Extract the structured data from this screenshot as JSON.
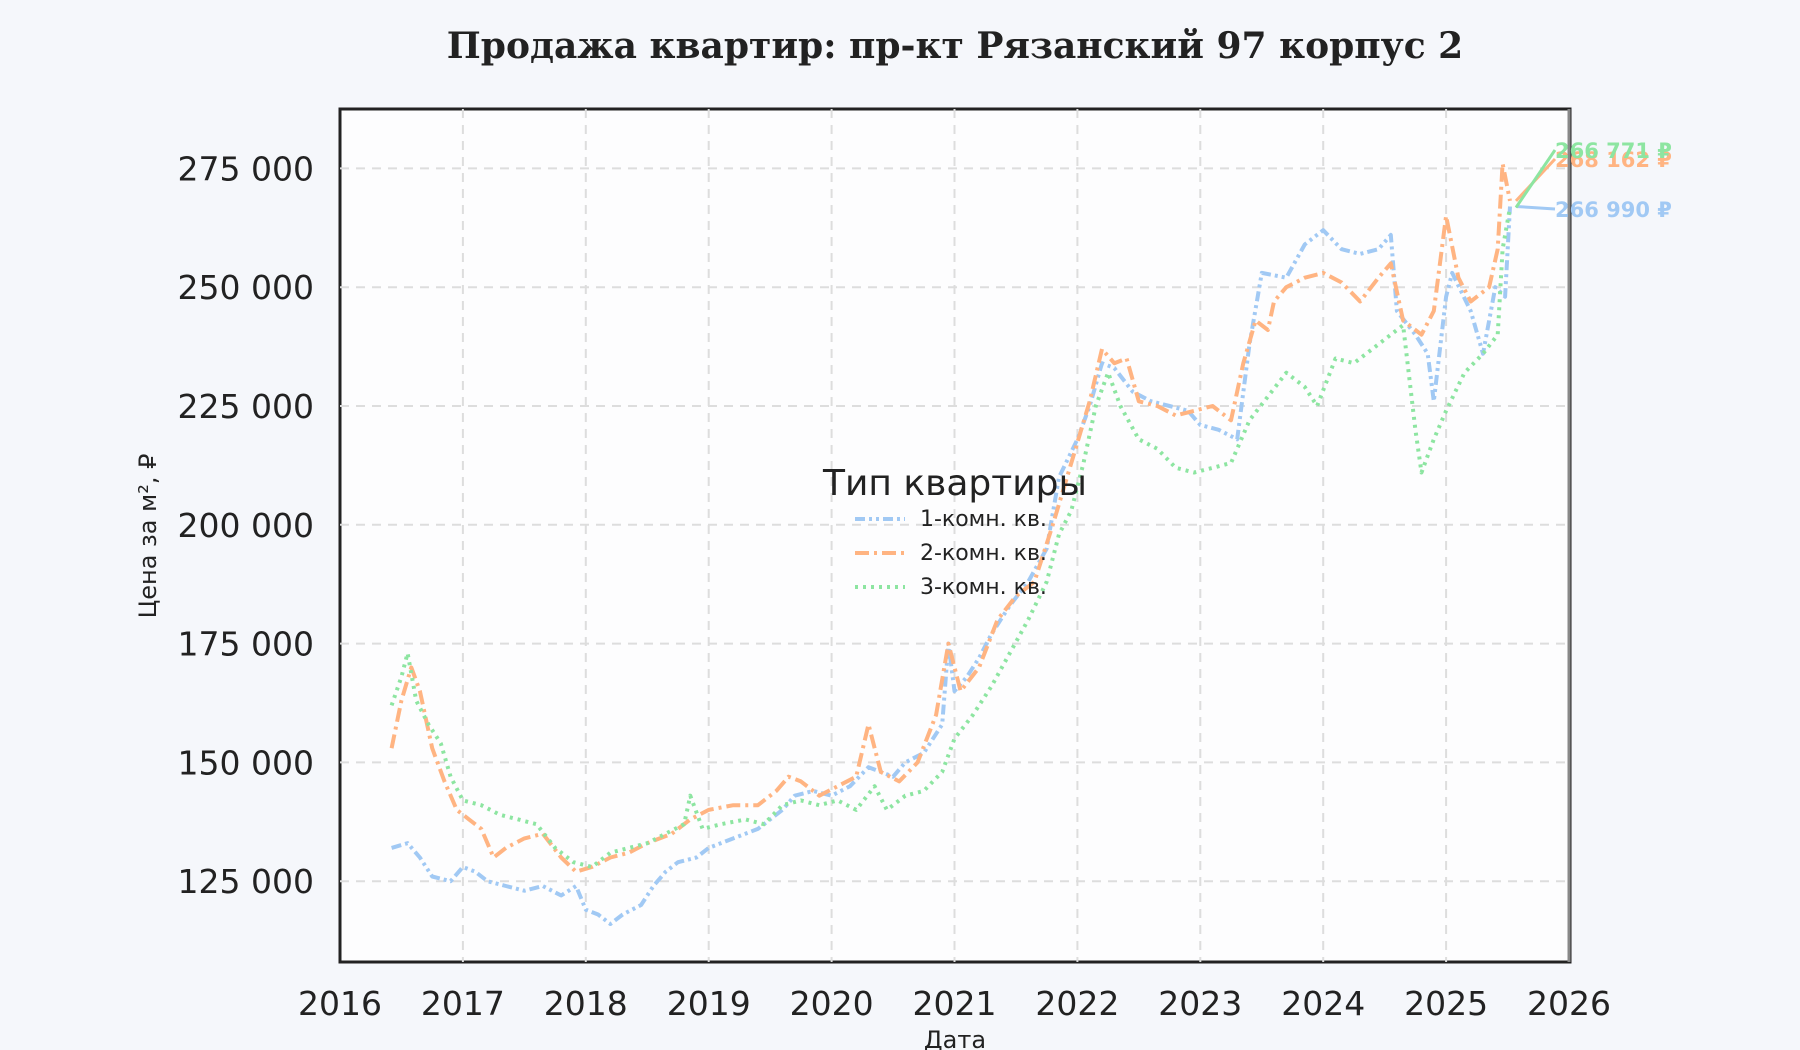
{
  "chart_data": {
    "type": "line",
    "title": "Продажа квартир: пр-кт Рязанский 97 корпус 2",
    "xlabel": "Дата",
    "ylabel": "Цена за м², ₽",
    "xlim": [
      2016,
      2026
    ],
    "ylim": [
      108000,
      287500
    ],
    "x_ticks": [
      "2016",
      "2017",
      "2018",
      "2019",
      "2020",
      "2021",
      "2022",
      "2023",
      "2024",
      "2025",
      "2026"
    ],
    "y_ticks": [
      {
        "value": 125000,
        "label": "125 000"
      },
      {
        "value": 150000,
        "label": "150 000"
      },
      {
        "value": 175000,
        "label": "175 000"
      },
      {
        "value": 200000,
        "label": "200 000"
      },
      {
        "value": 225000,
        "label": "225 000"
      },
      {
        "value": 250000,
        "label": "250 000"
      },
      {
        "value": 275000,
        "label": "275 000"
      }
    ],
    "grid": true,
    "legend": {
      "title": "Тип квартиры",
      "position": "center"
    },
    "series": [
      {
        "name": "1-комн. кв.",
        "color": "#a1c9f4",
        "dash": "dashdotdot",
        "end_label": "266 990 ₽",
        "points": [
          [
            2016.42,
            132000
          ],
          [
            2016.55,
            133000
          ],
          [
            2016.65,
            130000
          ],
          [
            2016.75,
            126000
          ],
          [
            2016.9,
            125000
          ],
          [
            2017.0,
            128000
          ],
          [
            2017.1,
            127000
          ],
          [
            2017.2,
            125000
          ],
          [
            2017.35,
            124000
          ],
          [
            2017.5,
            123000
          ],
          [
            2017.65,
            124000
          ],
          [
            2017.8,
            122000
          ],
          [
            2017.92,
            124000
          ],
          [
            2018.0,
            119000
          ],
          [
            2018.1,
            118000
          ],
          [
            2018.2,
            116000
          ],
          [
            2018.3,
            118000
          ],
          [
            2018.45,
            120000
          ],
          [
            2018.55,
            124000
          ],
          [
            2018.65,
            127000
          ],
          [
            2018.75,
            129000
          ],
          [
            2018.9,
            130000
          ],
          [
            2019.0,
            132000
          ],
          [
            2019.2,
            134000
          ],
          [
            2019.4,
            136000
          ],
          [
            2019.5,
            138000
          ],
          [
            2019.6,
            140000
          ],
          [
            2019.7,
            143000
          ],
          [
            2019.85,
            144000
          ],
          [
            2020.0,
            143000
          ],
          [
            2020.15,
            145000
          ],
          [
            2020.3,
            149000
          ],
          [
            2020.4,
            148000
          ],
          [
            2020.5,
            147000
          ],
          [
            2020.6,
            150000
          ],
          [
            2020.75,
            152000
          ],
          [
            2020.9,
            158000
          ],
          [
            2020.95,
            175000
          ],
          [
            2021.0,
            165000
          ],
          [
            2021.1,
            168000
          ],
          [
            2021.2,
            172000
          ],
          [
            2021.3,
            177000
          ],
          [
            2021.45,
            183000
          ],
          [
            2021.6,
            188000
          ],
          [
            2021.75,
            195000
          ],
          [
            2021.85,
            210000
          ],
          [
            2022.0,
            218000
          ],
          [
            2022.1,
            225000
          ],
          [
            2022.2,
            234000
          ],
          [
            2022.3,
            233000
          ],
          [
            2022.45,
            228000
          ],
          [
            2022.6,
            226000
          ],
          [
            2022.75,
            225000
          ],
          [
            2022.9,
            224000
          ],
          [
            2023.0,
            221000
          ],
          [
            2023.15,
            220000
          ],
          [
            2023.3,
            218000
          ],
          [
            2023.4,
            238000
          ],
          [
            2023.5,
            253000
          ],
          [
            2023.7,
            252000
          ],
          [
            2023.85,
            259000
          ],
          [
            2024.0,
            262000
          ],
          [
            2024.15,
            258000
          ],
          [
            2024.3,
            257000
          ],
          [
            2024.45,
            258000
          ],
          [
            2024.55,
            261000
          ],
          [
            2024.6,
            245000
          ],
          [
            2024.75,
            240000
          ],
          [
            2024.85,
            236000
          ],
          [
            2024.9,
            226000
          ],
          [
            2025.0,
            248000
          ],
          [
            2025.05,
            253000
          ],
          [
            2025.2,
            245000
          ],
          [
            2025.3,
            236000
          ],
          [
            2025.4,
            250000
          ],
          [
            2025.48,
            248000
          ],
          [
            2025.52,
            266990
          ]
        ]
      },
      {
        "name": "2-комн. кв.",
        "color": "#ffb482",
        "dash": "dashdot",
        "end_label": "268 162 ₽",
        "points": [
          [
            2016.42,
            153000
          ],
          [
            2016.5,
            163000
          ],
          [
            2016.58,
            170000
          ],
          [
            2016.65,
            165000
          ],
          [
            2016.75,
            153000
          ],
          [
            2016.85,
            146000
          ],
          [
            2016.95,
            140000
          ],
          [
            2017.05,
            138000
          ],
          [
            2017.15,
            136000
          ],
          [
            2017.25,
            130000
          ],
          [
            2017.35,
            132000
          ],
          [
            2017.5,
            134000
          ],
          [
            2017.65,
            135000
          ],
          [
            2017.8,
            130000
          ],
          [
            2017.92,
            127000
          ],
          [
            2018.05,
            128000
          ],
          [
            2018.2,
            130000
          ],
          [
            2018.35,
            131000
          ],
          [
            2018.5,
            133000
          ],
          [
            2018.7,
            135000
          ],
          [
            2018.85,
            138000
          ],
          [
            2019.0,
            140000
          ],
          [
            2019.2,
            141000
          ],
          [
            2019.4,
            141000
          ],
          [
            2019.55,
            144000
          ],
          [
            2019.65,
            147000
          ],
          [
            2019.75,
            146000
          ],
          [
            2019.9,
            143000
          ],
          [
            2020.05,
            145000
          ],
          [
            2020.2,
            147000
          ],
          [
            2020.3,
            158000
          ],
          [
            2020.4,
            148000
          ],
          [
            2020.55,
            146000
          ],
          [
            2020.7,
            150000
          ],
          [
            2020.85,
            160000
          ],
          [
            2020.95,
            175000
          ],
          [
            2021.05,
            165000
          ],
          [
            2021.2,
            170000
          ],
          [
            2021.35,
            180000
          ],
          [
            2021.5,
            185000
          ],
          [
            2021.65,
            188000
          ],
          [
            2021.8,
            200000
          ],
          [
            2021.95,
            213000
          ],
          [
            2022.1,
            226000
          ],
          [
            2022.2,
            237000
          ],
          [
            2022.3,
            234000
          ],
          [
            2022.4,
            235000
          ],
          [
            2022.5,
            226000
          ],
          [
            2022.65,
            225000
          ],
          [
            2022.8,
            223000
          ],
          [
            2022.95,
            224000
          ],
          [
            2023.1,
            225000
          ],
          [
            2023.25,
            222000
          ],
          [
            2023.35,
            234000
          ],
          [
            2023.45,
            243000
          ],
          [
            2023.55,
            241000
          ],
          [
            2023.6,
            247000
          ],
          [
            2023.7,
            250000
          ],
          [
            2023.85,
            252000
          ],
          [
            2024.0,
            253000
          ],
          [
            2024.15,
            251000
          ],
          [
            2024.3,
            247000
          ],
          [
            2024.45,
            252000
          ],
          [
            2024.55,
            255000
          ],
          [
            2024.65,
            243000
          ],
          [
            2024.8,
            240000
          ],
          [
            2024.9,
            245000
          ],
          [
            2025.0,
            265000
          ],
          [
            2025.1,
            252000
          ],
          [
            2025.2,
            247000
          ],
          [
            2025.35,
            250000
          ],
          [
            2025.42,
            258000
          ],
          [
            2025.46,
            276000
          ],
          [
            2025.52,
            268162
          ]
        ]
      },
      {
        "name": "3-комн. кв.",
        "color": "#8de5a1",
        "dash": "dotted",
        "end_label": "266 771 ₽",
        "points": [
          [
            2016.42,
            162000
          ],
          [
            2016.5,
            168000
          ],
          [
            2016.55,
            173000
          ],
          [
            2016.62,
            163000
          ],
          [
            2016.72,
            158000
          ],
          [
            2016.82,
            154000
          ],
          [
            2016.9,
            147000
          ],
          [
            2017.0,
            142000
          ],
          [
            2017.15,
            141000
          ],
          [
            2017.3,
            139000
          ],
          [
            2017.45,
            138000
          ],
          [
            2017.6,
            137000
          ],
          [
            2017.75,
            132000
          ],
          [
            2017.9,
            129000
          ],
          [
            2018.05,
            128000
          ],
          [
            2018.2,
            131000
          ],
          [
            2018.35,
            132000
          ],
          [
            2018.5,
            133000
          ],
          [
            2018.65,
            135000
          ],
          [
            2018.8,
            137000
          ],
          [
            2018.85,
            143000
          ],
          [
            2018.95,
            136000
          ],
          [
            2019.1,
            137000
          ],
          [
            2019.3,
            138000
          ],
          [
            2019.45,
            137000
          ],
          [
            2019.6,
            141000
          ],
          [
            2019.75,
            142000
          ],
          [
            2019.9,
            141000
          ],
          [
            2020.05,
            142000
          ],
          [
            2020.2,
            140000
          ],
          [
            2020.35,
            145000
          ],
          [
            2020.45,
            140000
          ],
          [
            2020.6,
            143000
          ],
          [
            2020.75,
            144000
          ],
          [
            2020.9,
            148000
          ],
          [
            2021.0,
            155000
          ],
          [
            2021.15,
            160000
          ],
          [
            2021.3,
            166000
          ],
          [
            2021.45,
            173000
          ],
          [
            2021.6,
            180000
          ],
          [
            2021.75,
            188000
          ],
          [
            2021.85,
            198000
          ],
          [
            2021.95,
            203000
          ],
          [
            2022.05,
            213000
          ],
          [
            2022.15,
            225000
          ],
          [
            2022.25,
            232000
          ],
          [
            2022.35,
            225000
          ],
          [
            2022.5,
            218000
          ],
          [
            2022.65,
            216000
          ],
          [
            2022.8,
            212000
          ],
          [
            2022.95,
            211000
          ],
          [
            2023.1,
            212000
          ],
          [
            2023.25,
            213000
          ],
          [
            2023.4,
            222000
          ],
          [
            2023.55,
            227000
          ],
          [
            2023.7,
            232000
          ],
          [
            2023.85,
            229000
          ],
          [
            2023.95,
            225000
          ],
          [
            2024.1,
            235000
          ],
          [
            2024.25,
            234000
          ],
          [
            2024.4,
            237000
          ],
          [
            2024.55,
            240000
          ],
          [
            2024.65,
            242000
          ],
          [
            2024.75,
            220000
          ],
          [
            2024.8,
            211000
          ],
          [
            2024.9,
            218000
          ],
          [
            2025.0,
            224000
          ],
          [
            2025.15,
            232000
          ],
          [
            2025.3,
            236000
          ],
          [
            2025.42,
            240000
          ],
          [
            2025.46,
            258000
          ],
          [
            2025.52,
            266771
          ]
        ]
      }
    ]
  }
}
